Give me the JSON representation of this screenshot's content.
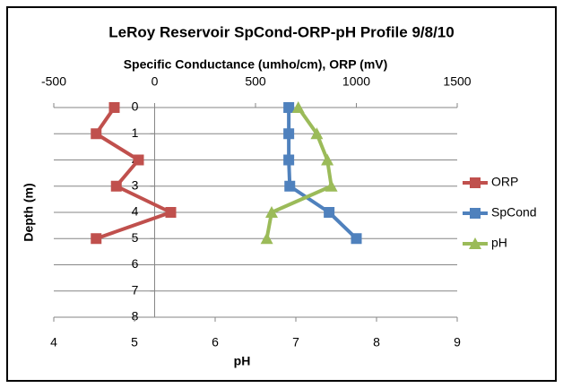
{
  "chart_data": {
    "type": "line",
    "title": "LeRoy Reservoir SpCond-ORP-pH Profile 9/8/10",
    "x_label": "Specific Conductance  (umho/cm), ORP (mV)",
    "x2_label": "pH",
    "y_label": "Depth (m)",
    "y": [
      0,
      1,
      2,
      3,
      4,
      5
    ],
    "ylim": [
      8,
      0
    ],
    "yticks": [
      0,
      1,
      2,
      3,
      4,
      5,
      6,
      7,
      8
    ],
    "xlim": [
      -500,
      1500
    ],
    "xticks": [
      -500,
      0,
      500,
      1000,
      1500
    ],
    "x2lim": [
      4,
      9
    ],
    "x2ticks": [
      4,
      5,
      6,
      7,
      8,
      9
    ],
    "grid": true,
    "legend": "right",
    "series": [
      {
        "name": "ORP",
        "color": "#c0504d",
        "marker": "square",
        "axis": "x",
        "values": [
          -200,
          -290,
          -80,
          -190,
          80,
          -290
        ]
      },
      {
        "name": "SpCond",
        "color": "#4f81bd",
        "marker": "square",
        "axis": "x",
        "values": [
          665,
          665,
          665,
          670,
          865,
          1000
        ]
      },
      {
        "name": "pH",
        "color": "#9bbb59",
        "marker": "triangle",
        "axis": "x2",
        "values": [
          7.03,
          7.26,
          7.39,
          7.44,
          6.7,
          6.64
        ]
      }
    ]
  }
}
